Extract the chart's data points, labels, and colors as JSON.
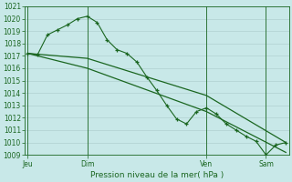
{
  "background_color": "#c8e8e8",
  "grid_color": "#b0d0d0",
  "line_color": "#1a6620",
  "title": "Pression niveau de la mer( hPa )",
  "ylim": [
    1009,
    1020.5
  ],
  "ymin": 1009,
  "ymax": 1021,
  "ytick_min": 1009,
  "ytick_max": 1020,
  "xtick_labels": [
    "Jeu",
    "Dim",
    "Ven",
    "Sam"
  ],
  "xtick_positions": [
    0,
    6,
    18,
    24
  ],
  "series1_x": [
    0,
    1,
    2,
    3,
    4,
    5,
    6,
    7,
    8,
    9,
    10,
    11,
    12,
    13,
    14,
    15,
    16,
    17,
    18,
    19,
    20,
    21,
    22,
    23,
    24,
    25,
    26
  ],
  "series1_y": [
    1017.2,
    1017.1,
    1018.7,
    1019.1,
    1019.5,
    1020.0,
    1020.2,
    1019.7,
    1018.3,
    1017.5,
    1017.2,
    1016.5,
    1015.3,
    1014.2,
    1013.0,
    1011.9,
    1011.5,
    1012.5,
    1012.8,
    1012.3,
    1011.5,
    1011.0,
    1010.5,
    1010.1,
    1009.0,
    1009.8,
    1010.0
  ],
  "series2_x": [
    0,
    6,
    18,
    26
  ],
  "series2_y": [
    1017.2,
    1016.0,
    1012.5,
    1009.2
  ],
  "series3_x": [
    0,
    6,
    18,
    26
  ],
  "series3_y": [
    1017.2,
    1016.8,
    1013.8,
    1010.0
  ],
  "n_points": 27
}
